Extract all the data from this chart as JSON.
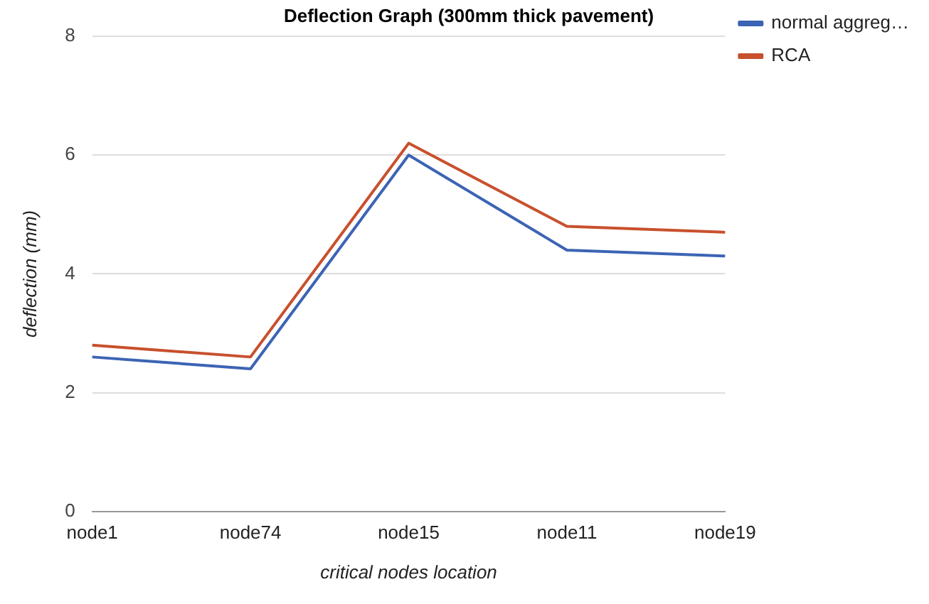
{
  "chart_data": {
    "type": "line",
    "title": "Deflection Graph (300mm thick pavement)",
    "xlabel": "critical nodes location",
    "ylabel": "deflection (mm)",
    "categories": [
      "node1",
      "node74",
      "node15",
      "node11",
      "node19"
    ],
    "series": [
      {
        "name": "normal aggreg…",
        "color": "#3c64b4",
        "values": [
          2.6,
          2.4,
          6.0,
          4.4,
          4.3
        ]
      },
      {
        "name": "RCA",
        "color": "#c8502d",
        "values": [
          2.8,
          2.6,
          6.2,
          4.8,
          4.7
        ]
      }
    ],
    "ylim": [
      0,
      8
    ],
    "yticks": [
      0,
      2,
      4,
      6,
      8
    ],
    "grid": "y",
    "legend": "top right",
    "marker": "none"
  }
}
